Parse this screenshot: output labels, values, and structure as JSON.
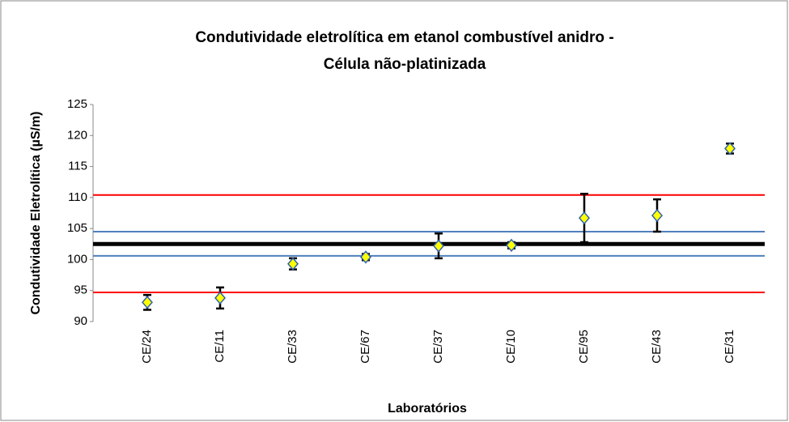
{
  "chart_data": {
    "type": "errorbar-scatter",
    "title_lines": [
      "Condutividade eletrolítica em etanol combustível anidro -",
      "Célula não-platinizada"
    ],
    "x_label": "Laboratórios",
    "y_label": "Condutividade Eletrolítica (µS/m)",
    "categories": [
      "CE/24",
      "CE/11",
      "CE/33",
      "CE/67",
      "CE/37",
      "CE/10",
      "CE/95",
      "CE/43",
      "CE/31"
    ],
    "values": [
      93.1,
      93.8,
      99.3,
      100.4,
      102.2,
      102.3,
      106.7,
      107.1,
      117.9
    ],
    "errors": [
      1.2,
      1.7,
      0.9,
      0.5,
      2.0,
      0.5,
      3.9,
      2.6,
      0.8
    ],
    "marker_color": "#ffff00",
    "marker_edge": "#3060b0",
    "error_color": "#000000",
    "reference_lines": [
      {
        "value": 110.4,
        "color": "#ff0000"
      },
      {
        "value": 104.5,
        "color": "#4f81bd"
      },
      {
        "value": 102.5,
        "color": "#000000"
      },
      {
        "value": 100.6,
        "color": "#4f81bd"
      },
      {
        "value": 94.7,
        "color": "#ff0000"
      }
    ],
    "ylim": [
      90,
      125
    ],
    "yticks": [
      90,
      95,
      100,
      105,
      110,
      115,
      120,
      125
    ]
  }
}
